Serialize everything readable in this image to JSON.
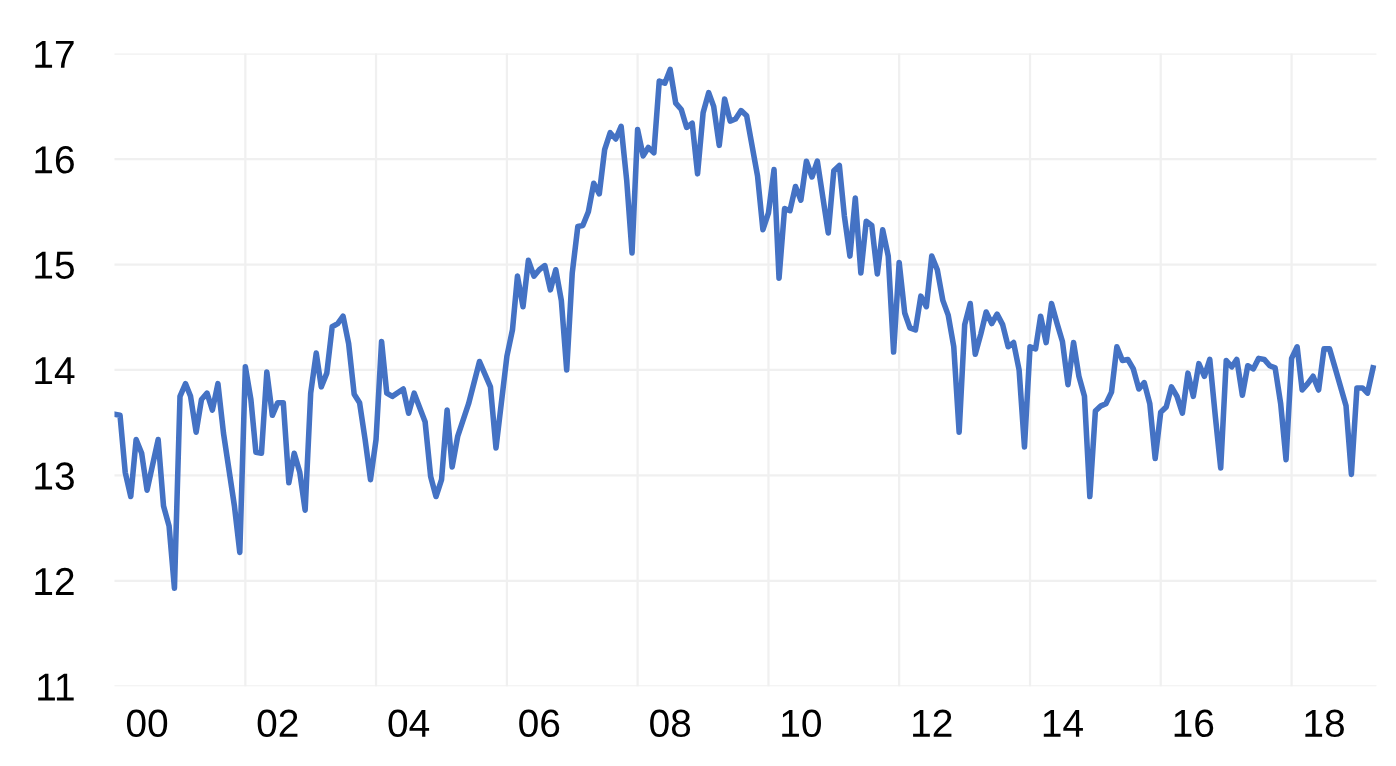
{
  "chart_data": {
    "type": "line",
    "x": [
      "2000-01",
      "2000-02",
      "2000-03",
      "2000-04",
      "2000-05",
      "2000-06",
      "2000-07",
      "2000-09",
      "2000-10",
      "2000-11",
      "2000-12",
      "2001-01",
      "2001-02",
      "2001-03",
      "2001-04",
      "2001-05",
      "2001-06",
      "2001-07",
      "2001-08",
      "2001-09",
      "2001-11",
      "2001-12",
      "2002-01",
      "2002-02",
      "2002-03",
      "2002-04",
      "2002-05",
      "2002-06",
      "2002-07",
      "2002-08",
      "2002-09",
      "2002-10",
      "2002-11",
      "2002-12",
      "2003-01",
      "2003-02",
      "2003-03",
      "2003-04",
      "2003-05",
      "2003-06",
      "2003-07",
      "2003-08",
      "2003-09",
      "2003-10",
      "2003-11",
      "2003-12",
      "2004-01",
      "2004-02",
      "2004-03",
      "2004-04",
      "2004-06",
      "2004-07",
      "2004-08",
      "2004-10",
      "2004-11",
      "2004-12",
      "2005-01",
      "2005-02",
      "2005-03",
      "2005-04",
      "2005-06",
      "2005-08",
      "2005-10",
      "2005-11",
      "2006-01",
      "2006-02",
      "2006-03",
      "2006-04",
      "2006-05",
      "2006-06",
      "2006-07",
      "2006-08",
      "2006-09",
      "2006-10",
      "2006-11",
      "2006-12",
      "2007-01",
      "2007-02",
      "2007-03",
      "2007-04",
      "2007-05",
      "2007-06",
      "2007-07",
      "2007-08",
      "2007-09",
      "2007-10",
      "2007-11",
      "2007-12",
      "2008-01",
      "2008-02",
      "2008-03",
      "2008-04",
      "2008-05",
      "2008-06",
      "2008-07",
      "2008-08",
      "2008-09",
      "2008-10",
      "2008-11",
      "2008-12",
      "2009-01",
      "2009-02",
      "2009-03",
      "2009-04",
      "2009-05",
      "2009-06",
      "2009-07",
      "2009-08",
      "2009-09",
      "2009-11",
      "2009-12",
      "2010-01",
      "2010-02",
      "2010-03",
      "2010-04",
      "2010-05",
      "2010-06",
      "2010-07",
      "2010-08",
      "2010-09",
      "2010-10",
      "2010-12",
      "2011-01",
      "2011-02",
      "2011-03",
      "2011-04",
      "2011-05",
      "2011-06",
      "2011-07",
      "2011-08",
      "2011-09",
      "2011-10",
      "2011-11",
      "2011-12",
      "2012-01",
      "2012-02",
      "2012-03",
      "2012-04",
      "2012-05",
      "2012-06",
      "2012-07",
      "2012-08",
      "2012-09",
      "2012-10",
      "2012-11",
      "2012-12",
      "2013-01",
      "2013-02",
      "2013-03",
      "2013-04",
      "2013-05",
      "2013-06",
      "2013-07",
      "2013-08",
      "2013-09",
      "2013-10",
      "2013-11",
      "2013-12",
      "2014-01",
      "2014-02",
      "2014-03",
      "2014-04",
      "2014-05",
      "2014-06",
      "2014-07",
      "2014-08",
      "2014-09",
      "2014-10",
      "2014-11",
      "2014-12",
      "2015-01",
      "2015-02",
      "2015-03",
      "2015-04",
      "2015-05",
      "2015-06",
      "2015-07",
      "2015-08",
      "2015-09",
      "2015-10",
      "2015-11",
      "2015-12",
      "2016-01",
      "2016-02",
      "2016-03",
      "2016-04",
      "2016-05",
      "2016-06",
      "2016-07",
      "2016-08",
      "2016-09",
      "2016-10",
      "2016-11",
      "2016-12",
      "2017-01",
      "2017-02",
      "2017-03",
      "2017-04",
      "2017-05",
      "2017-06",
      "2017-07",
      "2017-08",
      "2017-09",
      "2017-10",
      "2017-11",
      "2017-12",
      "2018-01",
      "2018-02",
      "2018-03",
      "2018-04",
      "2018-05",
      "2018-06",
      "2018-07",
      "2018-08",
      "2018-09",
      "2018-11",
      "2018-12",
      "2019-01",
      "2019-02",
      "2019-03",
      "2019-04"
    ],
    "series": [
      {
        "color": "#4472c4",
        "values": [
          13.58,
          13.57,
          13.03,
          12.8,
          13.34,
          13.21,
          12.86,
          13.34,
          12.71,
          12.52,
          11.93,
          13.75,
          13.87,
          13.75,
          13.41,
          13.72,
          13.78,
          13.62,
          13.87,
          13.4,
          12.71,
          12.27,
          14.03,
          13.72,
          13.22,
          13.21,
          13.98,
          13.57,
          13.69,
          13.69,
          12.93,
          13.21,
          13.03,
          12.67,
          13.78,
          14.16,
          13.84,
          13.97,
          14.41,
          14.44,
          14.51,
          14.25,
          13.77,
          13.69,
          13.34,
          12.96,
          13.34,
          14.27,
          13.78,
          13.75,
          13.82,
          13.59,
          13.78,
          13.51,
          12.99,
          12.8,
          12.96,
          13.62,
          13.08,
          13.37,
          13.68,
          14.08,
          13.84,
          13.26,
          14.13,
          14.38,
          14.89,
          14.6,
          15.04,
          14.89,
          14.95,
          14.99,
          14.76,
          14.95,
          14.66,
          14.0,
          14.92,
          15.36,
          15.37,
          15.5,
          15.77,
          15.67,
          16.09,
          16.25,
          16.19,
          16.31,
          15.8,
          15.11,
          16.28,
          16.03,
          16.11,
          16.06,
          16.74,
          16.72,
          16.85,
          16.53,
          16.47,
          16.3,
          16.34,
          15.86,
          16.44,
          16.63,
          16.5,
          16.13,
          16.57,
          16.36,
          16.38,
          16.46,
          16.41,
          15.84,
          15.33,
          15.49,
          15.9,
          14.87,
          15.53,
          15.51,
          15.74,
          15.61,
          15.98,
          15.83,
          15.98,
          15.3,
          15.89,
          15.94,
          15.46,
          15.08,
          15.63,
          14.92,
          15.41,
          15.37,
          14.91,
          15.33,
          15.08,
          14.17,
          15.02,
          14.54,
          14.4,
          14.38,
          14.7,
          14.6,
          15.08,
          14.95,
          14.66,
          14.52,
          14.22,
          13.41,
          14.43,
          14.63,
          14.15,
          14.34,
          14.55,
          14.44,
          14.53,
          14.43,
          14.22,
          14.26,
          14.0,
          13.27,
          14.22,
          14.2,
          14.51,
          14.26,
          14.63,
          14.44,
          14.27,
          13.86,
          14.26,
          13.94,
          13.75,
          12.8,
          13.61,
          13.66,
          13.68,
          13.79,
          14.22,
          14.09,
          14.1,
          14.01,
          13.82,
          13.88,
          13.68,
          13.16,
          13.6,
          13.65,
          13.84,
          13.75,
          13.59,
          13.97,
          13.75,
          14.06,
          13.94,
          14.1,
          13.56,
          13.07,
          14.09,
          14.03,
          14.1,
          13.76,
          14.04,
          14.01,
          14.11,
          14.1,
          14.04,
          14.02,
          13.68,
          13.15,
          14.11,
          14.22,
          13.81,
          13.87,
          13.94,
          13.81,
          14.2,
          14.2,
          14.02,
          13.66,
          13.01,
          13.83,
          13.83,
          13.78,
          14.02
        ]
      }
    ],
    "xlim": [
      "2000-01-01",
      "2019-04-20"
    ],
    "xticks": [
      {
        "value": "2000-07",
        "label": "00"
      },
      {
        "value": "2002-01",
        "label": null
      },
      {
        "value": "2002-07",
        "label": "02"
      },
      {
        "value": "2004-01",
        "label": null
      },
      {
        "value": "2004-07",
        "label": "04"
      },
      {
        "value": "2006-01",
        "label": null
      },
      {
        "value": "2006-07",
        "label": "06"
      },
      {
        "value": "2008-01",
        "label": null
      },
      {
        "value": "2008-07",
        "label": "08"
      },
      {
        "value": "2010-01",
        "label": null
      },
      {
        "value": "2010-07",
        "label": "10"
      },
      {
        "value": "2012-01",
        "label": null
      },
      {
        "value": "2012-07",
        "label": "12"
      },
      {
        "value": "2014-01",
        "label": null
      },
      {
        "value": "2014-07",
        "label": "14"
      },
      {
        "value": "2016-01",
        "label": null
      },
      {
        "value": "2016-07",
        "label": "16"
      },
      {
        "value": "2018-01",
        "label": null
      },
      {
        "value": "2018-07",
        "label": "18"
      }
    ],
    "ylim": [
      11,
      17
    ],
    "yticks": [
      11,
      12,
      13,
      14,
      15,
      16,
      17
    ],
    "grid": true,
    "marker": "none",
    "line_style": "solid",
    "legend": false
  }
}
